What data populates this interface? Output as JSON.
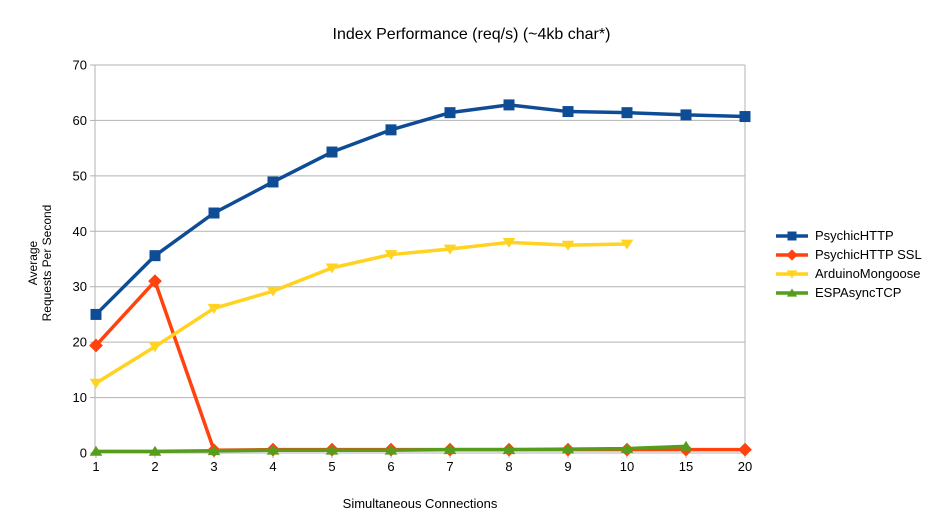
{
  "chart_data": {
    "type": "line",
    "title": "Index Performance (req/s) (~4kb char*)",
    "xlabel": "Simultaneous Connections",
    "ylabel_lines": [
      "Average",
      "Requests Per Second"
    ],
    "categories": [
      "1",
      "2",
      "3",
      "4",
      "5",
      "6",
      "7",
      "8",
      "9",
      "10",
      "15",
      "20"
    ],
    "ylim": [
      0,
      70
    ],
    "y_ticks": [
      0,
      10,
      20,
      30,
      40,
      50,
      60,
      70
    ],
    "grid": "horizontal-gridlines",
    "legend_position": "right",
    "axis_color": "#b3b3b3",
    "background_color": "#ffffff",
    "series": [
      {
        "name": "PsychicHTTP",
        "color": "#0e4d96",
        "marker": "square",
        "values": [
          25.0,
          35.6,
          43.3,
          48.9,
          54.3,
          58.3,
          61.4,
          62.8,
          61.6,
          61.4,
          61.0,
          60.7
        ]
      },
      {
        "name": "PsychicHTTP SSL",
        "color": "#ff420e",
        "marker": "diamond",
        "values": [
          19.4,
          31.0,
          0.5,
          0.6,
          0.6,
          0.6,
          0.6,
          0.6,
          0.6,
          0.6,
          0.6,
          0.6
        ]
      },
      {
        "name": "ArduinoMongoose",
        "color": "#ffd320",
        "marker": "triangle-down",
        "values": [
          12.6,
          19.2,
          26.1,
          29.2,
          33.4,
          35.8,
          36.8,
          38.0,
          37.5,
          37.7,
          null,
          null
        ]
      },
      {
        "name": "ESPAsyncTCP",
        "color": "#579d1c",
        "marker": "triangle-up",
        "values": [
          0.3,
          0.3,
          0.4,
          0.5,
          0.5,
          0.5,
          0.6,
          0.6,
          0.7,
          0.8,
          1.2,
          null
        ]
      }
    ]
  }
}
